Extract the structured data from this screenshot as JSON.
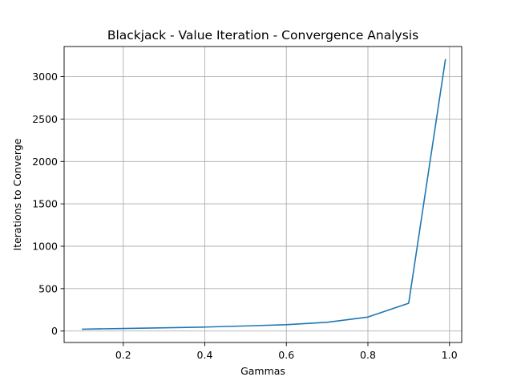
{
  "chart_data": {
    "type": "line",
    "title": "Blackjack - Value Iteration - Convergence Analysis",
    "xlabel": "Gammas",
    "ylabel": "Iterations to Converge",
    "xlim": [
      0.055,
      1.03
    ],
    "ylim": [
      -135,
      3355
    ],
    "xticks": [
      0.2,
      0.4,
      0.6,
      0.8,
      1.0
    ],
    "xtick_labels": [
      "0.2",
      "0.4",
      "0.6",
      "0.8",
      "1.0"
    ],
    "yticks": [
      0,
      500,
      1000,
      1500,
      2000,
      2500,
      3000
    ],
    "ytick_labels": [
      "0",
      "500",
      "1000",
      "1500",
      "2000",
      "2500",
      "3000"
    ],
    "grid": true,
    "series": [
      {
        "color": "#1f77b4",
        "x": [
          0.1,
          0.2,
          0.3,
          0.4,
          0.5,
          0.6,
          0.7,
          0.8,
          0.9,
          0.99
        ],
        "y": [
          22,
          30,
          38,
          47,
          60,
          75,
          103,
          165,
          328,
          3200
        ]
      }
    ]
  }
}
